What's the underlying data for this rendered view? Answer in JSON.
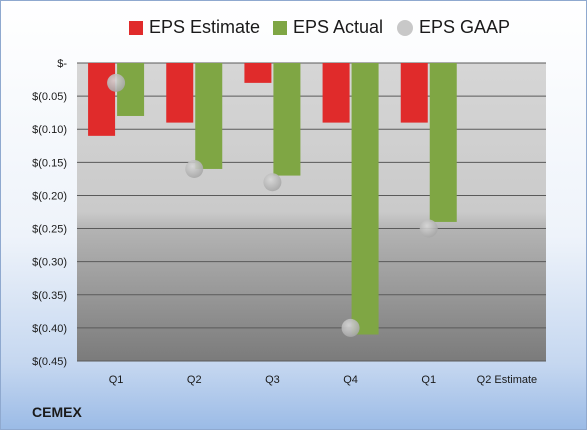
{
  "company": "CEMEX",
  "chart_data": {
    "type": "bar",
    "categories": [
      "Q1",
      "Q2",
      "Q3",
      "Q4",
      "Q1",
      "Q2 Estimate"
    ],
    "series": [
      {
        "name": "EPS Estimate",
        "type": "bar",
        "color": "#e02b2b",
        "values": [
          -0.11,
          -0.09,
          -0.03,
          -0.09,
          -0.09,
          null
        ]
      },
      {
        "name": "EPS Actual",
        "type": "bar",
        "color": "#7fa644",
        "values": [
          -0.08,
          -0.16,
          -0.17,
          -0.41,
          -0.24,
          null
        ]
      },
      {
        "name": "EPS GAAP",
        "type": "scatter",
        "color": "#bfbfbf",
        "values": [
          -0.03,
          -0.16,
          -0.18,
          -0.4,
          -0.25,
          null
        ]
      }
    ],
    "y_ticks": [
      {
        "value": 0,
        "label": "$-"
      },
      {
        "value": -0.05,
        "label": "$(0.05)"
      },
      {
        "value": -0.1,
        "label": "$(0.10)"
      },
      {
        "value": -0.15,
        "label": "$(0.15)"
      },
      {
        "value": -0.2,
        "label": "$(0.20)"
      },
      {
        "value": -0.25,
        "label": "$(0.25)"
      },
      {
        "value": -0.3,
        "label": "$(0.30)"
      },
      {
        "value": -0.35,
        "label": "$(0.35)"
      },
      {
        "value": -0.4,
        "label": "$(0.40)"
      },
      {
        "value": -0.45,
        "label": "$(0.45)"
      }
    ],
    "ylim": [
      -0.45,
      0
    ],
    "grid": true,
    "legend_position": "top"
  }
}
